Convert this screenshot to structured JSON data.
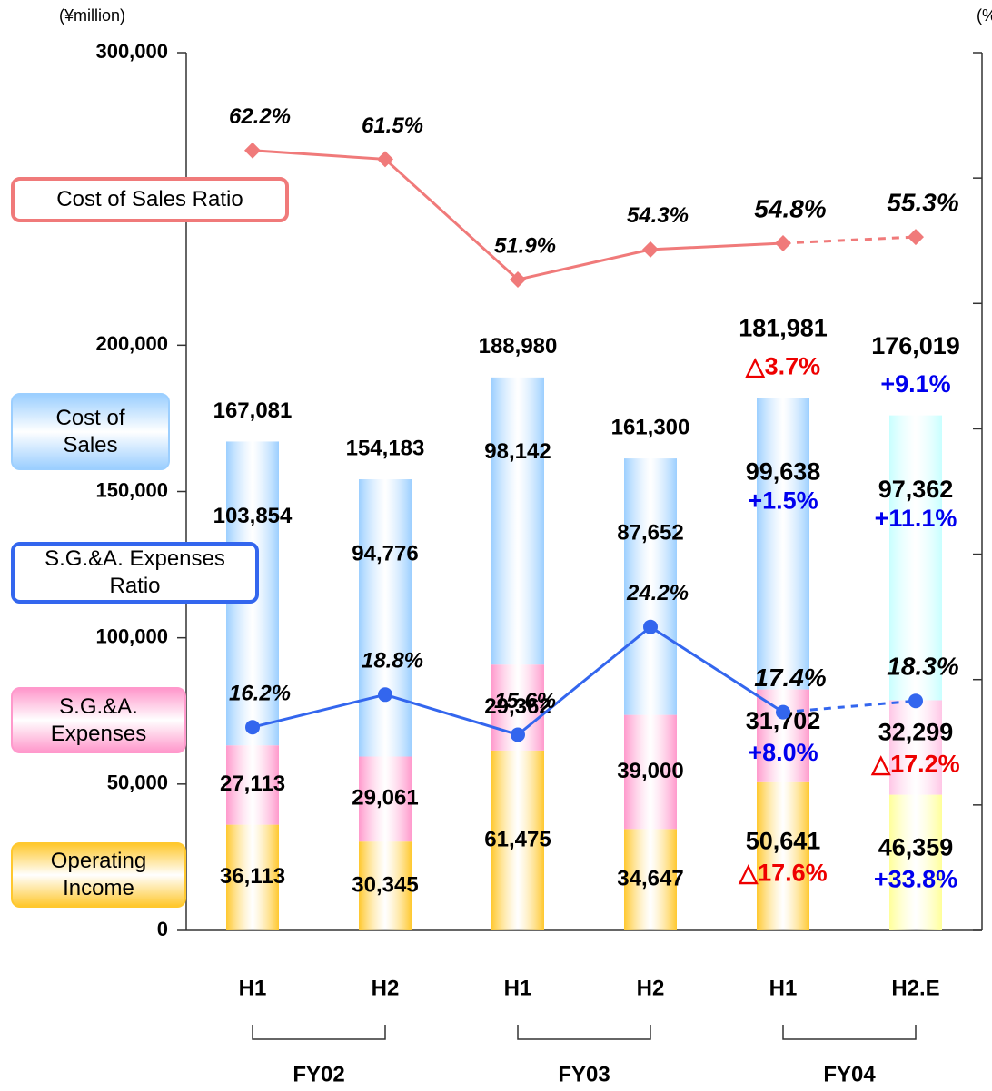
{
  "chart_data": {
    "type": "bar",
    "y_label": "(¥million)",
    "y2_label": "(%)",
    "categories": [
      "H1",
      "H2",
      "H1",
      "H2",
      "H1",
      "H2.E"
    ],
    "groups": [
      {
        "name": "FY02",
        "span": 2
      },
      {
        "name": "FY03",
        "span": 2
      },
      {
        "name": "FY04",
        "span": 2
      }
    ],
    "totals": [
      {
        "value": 167081,
        "label": "167,081"
      },
      {
        "value": 154183,
        "label": "154,183"
      },
      {
        "value": 188980,
        "label": "188,980"
      },
      {
        "value": 161300,
        "label": "161,300"
      },
      {
        "value": 181981,
        "label": "181,981"
      },
      {
        "value": 176019,
        "label": "176,019"
      }
    ],
    "total_change_labels": [
      null,
      null,
      null,
      null,
      "△3.7%",
      "+9.1%"
    ],
    "series": [
      {
        "name": "Operating Income",
        "colors": [
          "#ffc82e",
          "#ffc82e",
          "#ffc82e",
          "#ffc82e",
          "#ffc82e",
          "#ffff99"
        ],
        "values": [
          36113,
          30345,
          61475,
          34647,
          50641,
          46359
        ],
        "value_labels": [
          "36,113",
          "30,345",
          "61,475",
          "34,647",
          "50,641",
          "46,359"
        ],
        "change_labels": [
          null,
          null,
          null,
          null,
          "△17.6%",
          "+33.8%"
        ]
      },
      {
        "name": "S.G.&A. Expenses",
        "colors": [
          "#ff99cc",
          "#ff99cc",
          "#ff99cc",
          "#ff99cc",
          "#ff99cc",
          "#ffc6e6"
        ],
        "values": [
          27113,
          29061,
          29362,
          39000,
          31702,
          32299
        ],
        "value_labels": [
          "27,113",
          "29,061",
          "29,362",
          "39,000",
          "31,702",
          "32,299"
        ],
        "change_labels": [
          null,
          null,
          null,
          null,
          "+8.0%",
          "△17.2%"
        ]
      },
      {
        "name": "Cost of Sales",
        "colors": [
          "#9ccfff",
          "#9ccfff",
          "#9ccfff",
          "#9ccfff",
          "#9ccfff",
          "#c8ffff"
        ],
        "values": [
          103854,
          94776,
          98142,
          87652,
          99638,
          97362
        ],
        "value_labels": [
          "103,854",
          "94,776",
          "98,142",
          "87,652",
          "99,638",
          "97,362"
        ],
        "change_labels": [
          null,
          null,
          null,
          null,
          "+1.5%",
          "+11.1%"
        ]
      },
      {
        "name": "Cost of Sales Ratio",
        "type": "line",
        "axis": "y2",
        "color": "#f07a7a",
        "marker": "diamond",
        "dashed_last_segment": true,
        "values": [
          62.2,
          61.5,
          51.9,
          54.3,
          54.8,
          55.3
        ],
        "value_labels": [
          "62.2%",
          "61.5%",
          "51.9%",
          "54.3%",
          "54.8%",
          "55.3%"
        ]
      },
      {
        "name": "S.G.&A. Expenses Ratio",
        "type": "line",
        "axis": "y2",
        "color": "#3366ee",
        "marker": "circle",
        "dashed_last_segment": true,
        "values": [
          16.2,
          18.8,
          15.6,
          24.2,
          17.4,
          18.3
        ],
        "value_labels": [
          "16.2%",
          "18.8%",
          "15.6%",
          "24.2%",
          "17.4%",
          "18.3%"
        ]
      }
    ],
    "ylim": [
      0,
      300000
    ],
    "yticks": [
      0,
      {
        "value": 50000,
        "label": "50,000"
      },
      {
        "value": 100000,
        "label": "100,000"
      },
      {
        "value": 150000,
        "label": "150,000"
      },
      {
        "value": 200000,
        "label": "200,000"
      },
      {
        "value": 300000,
        "label": "300,000"
      }
    ],
    "y2lim": [
      0,
      70
    ],
    "y2ticks": [
      0,
      10,
      20,
      30,
      40,
      50,
      60,
      70
    ]
  }
}
